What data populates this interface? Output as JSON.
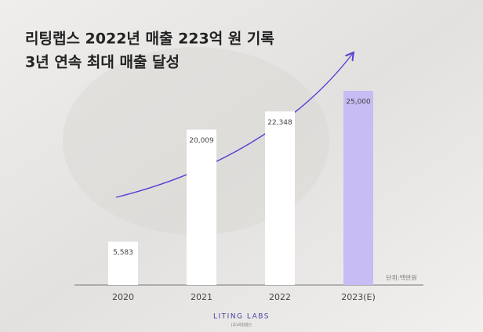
{
  "chart_data": {
    "type": "bar",
    "title": "리팅랩스 2022년 매출 223억 원 기록",
    "subtitle": "3년 연속 최대 매출 달성",
    "categories": [
      "2020",
      "2021",
      "2022",
      "2023(E)"
    ],
    "values": [
      5583,
      20009,
      22348,
      25000
    ],
    "value_labels": [
      "5,583",
      "20,009",
      "22,348",
      "25,000"
    ],
    "colors": [
      "#ffffff",
      "#ffffff",
      "#ffffff",
      "#c7bcf3"
    ],
    "unit_label": "단위:백만원"
  },
  "brand": {
    "name": "LITING LABS",
    "sub": "(주)리팅랩스"
  }
}
